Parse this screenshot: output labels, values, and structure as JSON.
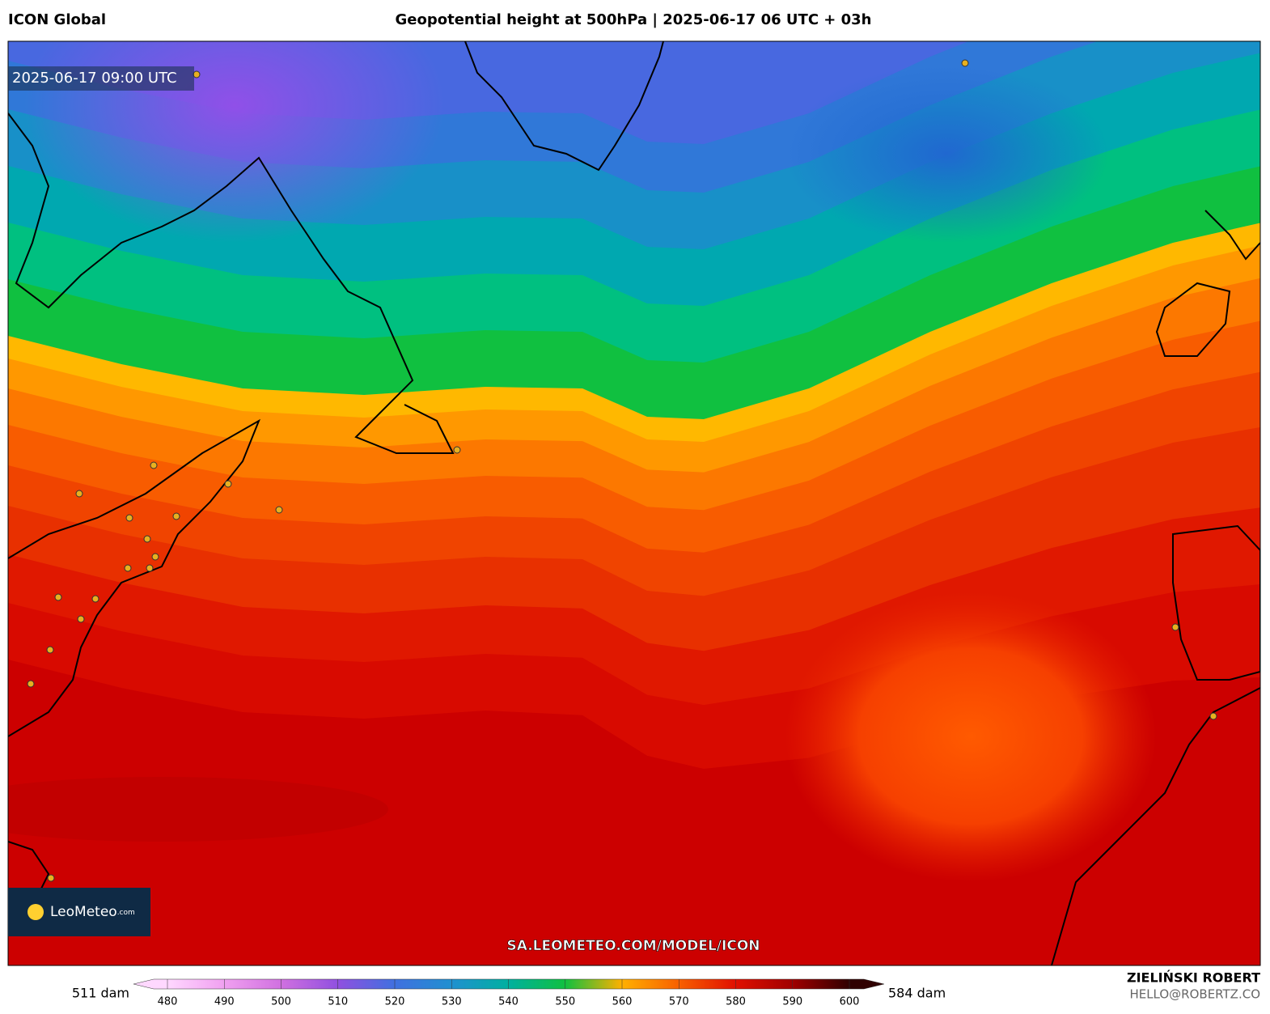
{
  "header": {
    "left": "ICON Global",
    "title": "Geopotential height at 500hPa | 2025-06-17 06 UTC + 03h"
  },
  "map": {
    "timestamp": "2025-06-17 09:00 UTC",
    "watermark": "SA.LEOMETEO.COM/MODEL/ICON",
    "logo": "LeoMeteo",
    "logo_suffix": ".com"
  },
  "footer": {
    "author": "ZIELIŃSKI ROBERT",
    "email": "HELLO@ROBERTZ.CO"
  },
  "colorbar": {
    "min_label": "511 dam",
    "max_label": "584 dam",
    "ticks": [
      480,
      490,
      500,
      510,
      520,
      530,
      540,
      550,
      560,
      570,
      580,
      590,
      600
    ],
    "colors": [
      "#ffd8ff",
      "#f0a0f0",
      "#d070e0",
      "#9050e0",
      "#4070e0",
      "#2090d0",
      "#00b0a0",
      "#10c040",
      "#ffb000",
      "#f86000",
      "#e01000",
      "#a00000",
      "#300000"
    ]
  }
}
